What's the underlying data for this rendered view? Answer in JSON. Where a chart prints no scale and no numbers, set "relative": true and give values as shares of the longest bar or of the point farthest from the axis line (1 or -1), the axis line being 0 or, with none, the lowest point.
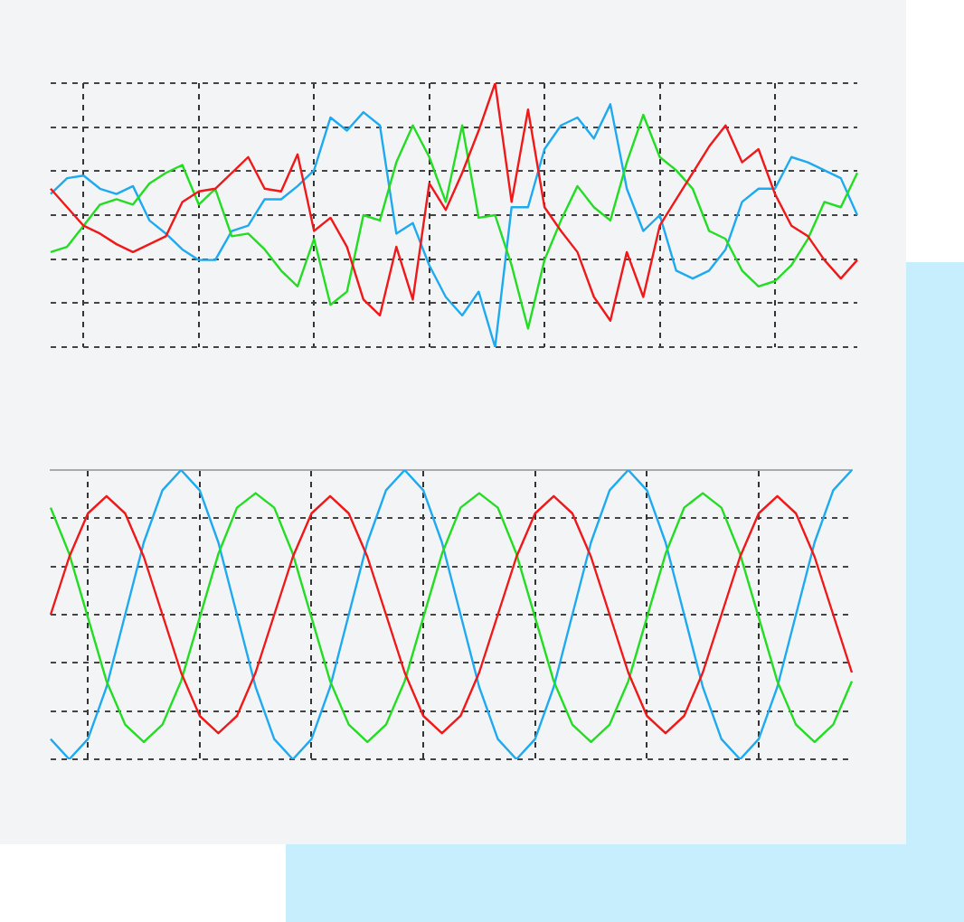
{
  "chart_data": [
    {
      "type": "line",
      "relative": true,
      "grid": true,
      "categories": [
        null,
        null,
        null,
        null,
        null,
        null,
        null,
        null,
        null,
        null,
        null,
        null,
        null,
        null,
        null,
        null,
        null,
        null,
        null,
        null,
        null,
        null,
        null,
        null,
        null,
        null,
        null,
        null,
        null,
        null,
        null,
        null,
        null,
        null,
        null,
        null,
        null,
        null,
        null,
        null,
        null,
        null,
        null,
        null,
        null,
        null,
        null,
        null,
        null,
        null
      ],
      "series": [
        {
          "color": "#f01818",
          "values": [
            0.6,
            0.53,
            0.46,
            0.43,
            0.39,
            0.36,
            0.39,
            0.42,
            0.55,
            0.59,
            0.6,
            0.66,
            0.72,
            0.6,
            0.59,
            0.73,
            0.44,
            0.49,
            0.38,
            0.18,
            0.12,
            0.38,
            0.18,
            0.62,
            0.52,
            0.66,
            0.82,
            1,
            0.55,
            0.9,
            0.53,
            0.44,
            0.36,
            0.19,
            0.1,
            0.36,
            0.19,
            0.46,
            0.56,
            0.66,
            0.76,
            0.84,
            0.7,
            0.75,
            0.58,
            0.46,
            0.42,
            0.33,
            0.26,
            0.33
          ]
        },
        {
          "color": "#22dd22",
          "values": [
            0.36,
            0.38,
            0.46,
            0.54,
            0.56,
            0.54,
            0.62,
            0.66,
            0.69,
            0.54,
            0.6,
            0.42,
            0.43,
            0.37,
            0.29,
            0.23,
            0.41,
            0.16,
            0.21,
            0.5,
            0.48,
            0.7,
            0.84,
            0.72,
            0.55,
            0.84,
            0.49,
            0.5,
            0.31,
            0.07,
            0.33,
            0.48,
            0.61,
            0.53,
            0.48,
            0.7,
            0.88,
            0.72,
            0.67,
            0.6,
            0.44,
            0.41,
            0.29,
            0.23,
            0.25,
            0.31,
            0.41,
            0.55,
            0.53,
            0.66
          ]
        },
        {
          "color": "#1eaaf0",
          "values": [
            0.58,
            0.64,
            0.65,
            0.6,
            0.58,
            0.61,
            0.48,
            0.43,
            0.37,
            0.33,
            0.33,
            0.44,
            0.46,
            0.56,
            0.56,
            0.61,
            0.67,
            0.87,
            0.82,
            0.89,
            0.84,
            0.43,
            0.47,
            0.31,
            0.19,
            0.12,
            0.21,
            0,
            0.53,
            0.53,
            0.75,
            0.84,
            0.87,
            0.79,
            0.92,
            0.6,
            0.44,
            0.5,
            0.29,
            0.26,
            0.29,
            0.37,
            0.55,
            0.6,
            0.6,
            0.72,
            0.7,
            0.67,
            0.64,
            0.5
          ]
        }
      ]
    },
    {
      "type": "line",
      "relative": true,
      "grid": true,
      "categories": [
        null,
        null,
        null,
        null,
        null,
        null,
        null,
        null,
        null,
        null,
        null,
        null,
        null,
        null,
        null,
        null,
        null,
        null,
        null,
        null,
        null,
        null,
        null,
        null,
        null,
        null,
        null,
        null,
        null,
        null,
        null,
        null,
        null,
        null,
        null,
        null,
        null,
        null,
        null,
        null,
        null,
        null,
        null,
        null
      ],
      "series": [
        {
          "color": "#f01818",
          "values": [
            0.5,
            0.7,
            0.85,
            0.91,
            0.85,
            0.7,
            0.5,
            0.3,
            0.15,
            0.09,
            0.15,
            0.3,
            0.5,
            0.7,
            0.85,
            0.91,
            0.85,
            0.7,
            0.5,
            0.3,
            0.15,
            0.09,
            0.15,
            0.3,
            0.5,
            0.7,
            0.85,
            0.91,
            0.85,
            0.7,
            0.5,
            0.3,
            0.15,
            0.09,
            0.15,
            0.3,
            0.5,
            0.7,
            0.85,
            0.91,
            0.85,
            0.7,
            0.5,
            0.3
          ]
        },
        {
          "color": "#22dd22",
          "values": [
            0.87,
            0.71,
            0.49,
            0.27,
            0.12,
            0.06,
            0.12,
            0.27,
            0.49,
            0.71,
            0.87,
            0.92,
            0.87,
            0.71,
            0.49,
            0.27,
            0.12,
            0.06,
            0.12,
            0.27,
            0.49,
            0.71,
            0.87,
            0.92,
            0.87,
            0.71,
            0.49,
            0.27,
            0.12,
            0.06,
            0.12,
            0.27,
            0.49,
            0.71,
            0.87,
            0.92,
            0.87,
            0.71,
            0.49,
            0.27,
            0.12,
            0.06,
            0.12,
            0.27
          ]
        },
        {
          "color": "#1eaaf0",
          "values": [
            0.07,
            0,
            0.07,
            0.25,
            0.5,
            0.75,
            0.93,
            1,
            0.93,
            0.75,
            0.5,
            0.25,
            0.07,
            0,
            0.07,
            0.25,
            0.5,
            0.75,
            0.93,
            1,
            0.93,
            0.75,
            0.5,
            0.25,
            0.07,
            0,
            0.07,
            0.25,
            0.5,
            0.75,
            0.93,
            1,
            0.93,
            0.75,
            0.5,
            0.25,
            0.07,
            0,
            0.07,
            0.25,
            0.5,
            0.75,
            0.93,
            1
          ]
        }
      ]
    }
  ]
}
